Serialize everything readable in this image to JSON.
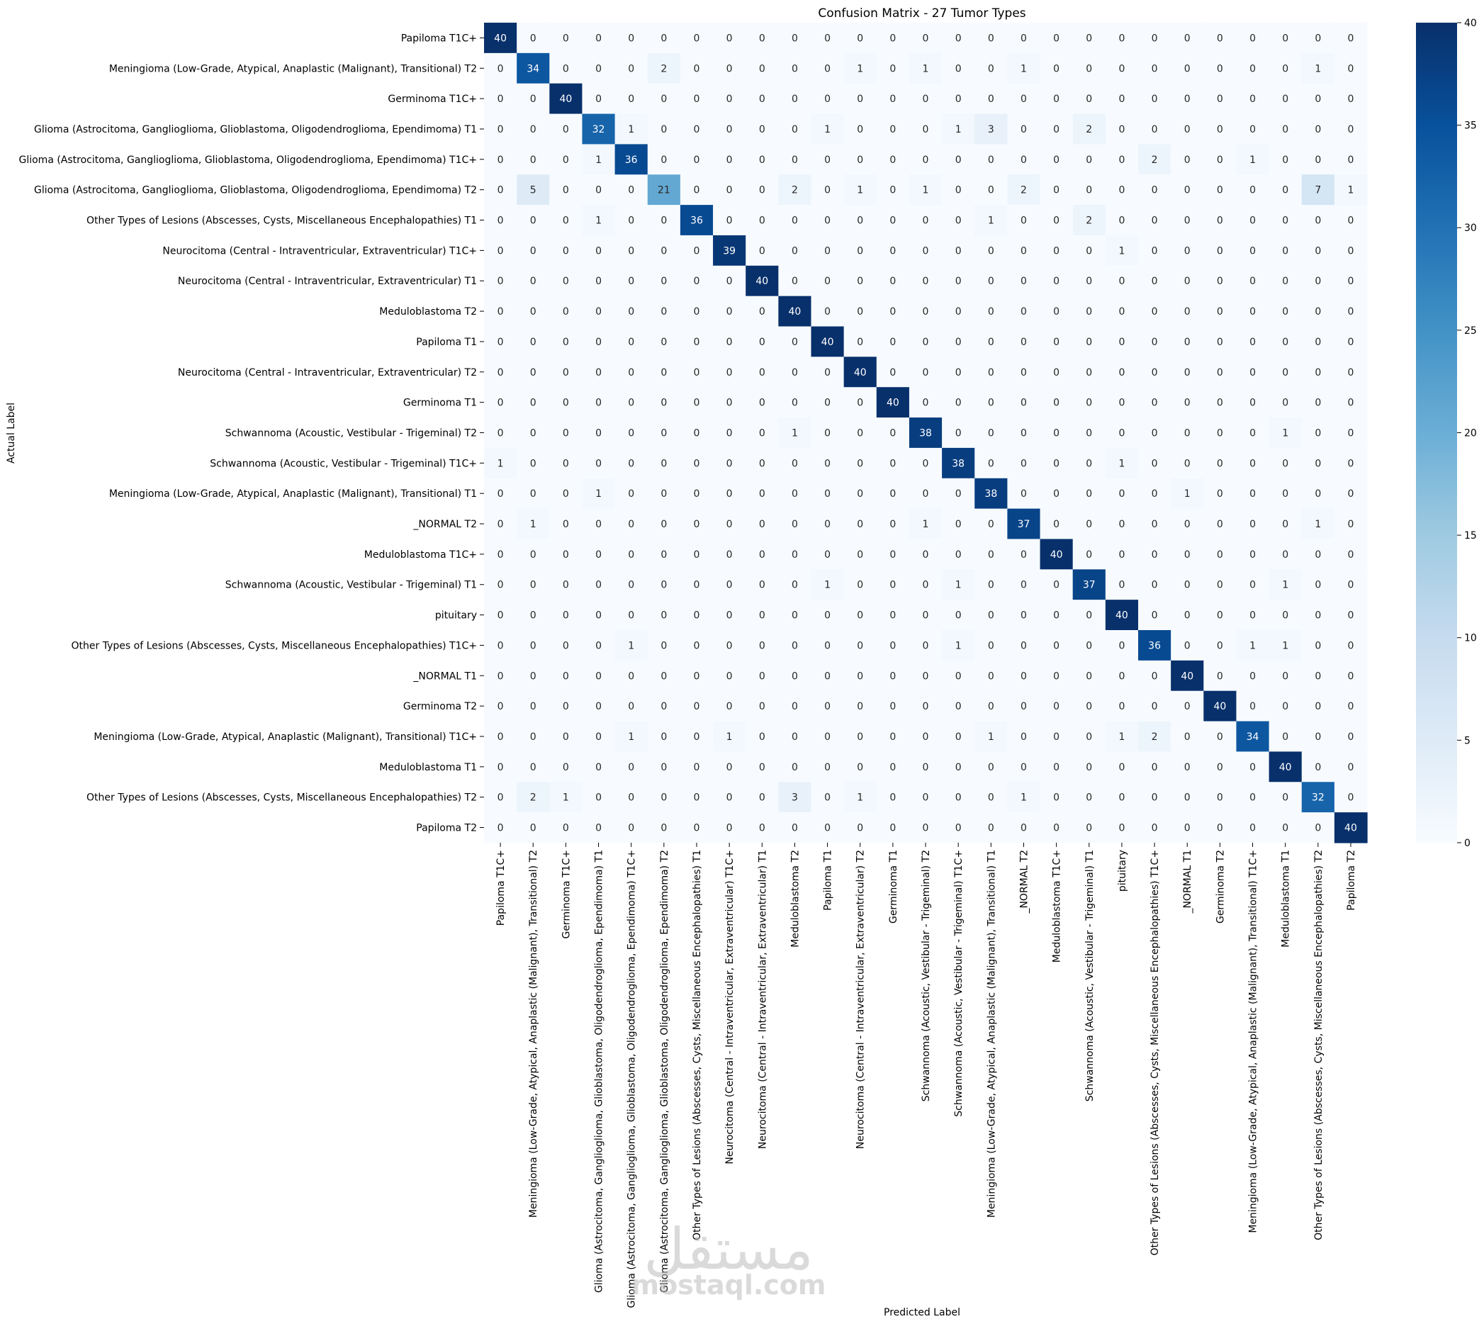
{
  "chart_data": {
    "type": "heatmap",
    "title": "Confusion Matrix - 27 Tumor Types",
    "xlabel": "Predicted Label",
    "ylabel": "Actual Label",
    "labels": [
      "Papiloma T1C+",
      "Meningioma (Low-Grade, Atypical, Anaplastic (Malignant), Transitional)  T2",
      "Germinoma T1C+",
      "Glioma (Astrocitoma, Ganglioglioma, Glioblastoma, Oligodendroglioma, Ependimoma) T1",
      "Glioma (Astrocitoma, Ganglioglioma, Glioblastoma, Oligodendroglioma, Ependimoma) T1C+",
      "Glioma (Astrocitoma, Ganglioglioma, Glioblastoma, Oligodendroglioma, Ependimoma) T2",
      "Other Types of Lesions (Abscesses, Cysts, Miscellaneous Encephalopathies) T1",
      "Neurocitoma (Central - Intraventricular, Extraventricular) T1C+",
      "Neurocitoma (Central - Intraventricular, Extraventricular) T1",
      "Meduloblastoma T2",
      "Papiloma T1",
      "Neurocitoma (Central - Intraventricular, Extraventricular) T2",
      "Germinoma T1",
      "Schwannoma (Acoustic, Vestibular - Trigeminal) T2",
      "Schwannoma (Acoustic, Vestibular - Trigeminal) T1C+",
      "Meningioma (Low-Grade, Atypical, Anaplastic (Malignant), Transitional) T1",
      "_NORMAL T2",
      "Meduloblastoma T1C+",
      "Schwannoma (Acoustic, Vestibular - Trigeminal) T1",
      "pituitary",
      "Other Types of Lesions (Abscesses, Cysts, Miscellaneous Encephalopathies) T1C+",
      "_NORMAL T1",
      "Germinoma T2",
      "Meningioma (Low-Grade, Atypical, Anaplastic (Malignant), Transitional)  T1C+",
      "Meduloblastoma T1",
      "Other Types of Lesions (Abscesses, Cysts, Miscellaneous Encephalopathies) T2",
      "Papiloma T2"
    ],
    "matrix": [
      [
        40,
        0,
        0,
        0,
        0,
        0,
        0,
        0,
        0,
        0,
        0,
        0,
        0,
        0,
        0,
        0,
        0,
        0,
        0,
        0,
        0,
        0,
        0,
        0,
        0,
        0,
        0
      ],
      [
        0,
        34,
        0,
        0,
        0,
        2,
        0,
        0,
        0,
        0,
        0,
        1,
        0,
        1,
        0,
        0,
        1,
        0,
        0,
        0,
        0,
        0,
        0,
        0,
        0,
        1,
        0
      ],
      [
        0,
        0,
        40,
        0,
        0,
        0,
        0,
        0,
        0,
        0,
        0,
        0,
        0,
        0,
        0,
        0,
        0,
        0,
        0,
        0,
        0,
        0,
        0,
        0,
        0,
        0,
        0
      ],
      [
        0,
        0,
        0,
        32,
        1,
        0,
        0,
        0,
        0,
        0,
        1,
        0,
        0,
        0,
        1,
        3,
        0,
        0,
        2,
        0,
        0,
        0,
        0,
        0,
        0,
        0,
        0
      ],
      [
        0,
        0,
        0,
        1,
        36,
        0,
        0,
        0,
        0,
        0,
        0,
        0,
        0,
        0,
        0,
        0,
        0,
        0,
        0,
        0,
        2,
        0,
        0,
        1,
        0,
        0,
        0
      ],
      [
        0,
        5,
        0,
        0,
        0,
        21,
        0,
        0,
        0,
        2,
        0,
        1,
        0,
        1,
        0,
        0,
        2,
        0,
        0,
        0,
        0,
        0,
        0,
        0,
        0,
        7,
        1
      ],
      [
        0,
        0,
        0,
        1,
        0,
        0,
        36,
        0,
        0,
        0,
        0,
        0,
        0,
        0,
        0,
        1,
        0,
        0,
        2,
        0,
        0,
        0,
        0,
        0,
        0,
        0,
        0
      ],
      [
        0,
        0,
        0,
        0,
        0,
        0,
        0,
        39,
        0,
        0,
        0,
        0,
        0,
        0,
        0,
        0,
        0,
        0,
        0,
        1,
        0,
        0,
        0,
        0,
        0,
        0,
        0
      ],
      [
        0,
        0,
        0,
        0,
        0,
        0,
        0,
        0,
        40,
        0,
        0,
        0,
        0,
        0,
        0,
        0,
        0,
        0,
        0,
        0,
        0,
        0,
        0,
        0,
        0,
        0,
        0
      ],
      [
        0,
        0,
        0,
        0,
        0,
        0,
        0,
        0,
        0,
        40,
        0,
        0,
        0,
        0,
        0,
        0,
        0,
        0,
        0,
        0,
        0,
        0,
        0,
        0,
        0,
        0,
        0
      ],
      [
        0,
        0,
        0,
        0,
        0,
        0,
        0,
        0,
        0,
        0,
        40,
        0,
        0,
        0,
        0,
        0,
        0,
        0,
        0,
        0,
        0,
        0,
        0,
        0,
        0,
        0,
        0
      ],
      [
        0,
        0,
        0,
        0,
        0,
        0,
        0,
        0,
        0,
        0,
        0,
        40,
        0,
        0,
        0,
        0,
        0,
        0,
        0,
        0,
        0,
        0,
        0,
        0,
        0,
        0,
        0
      ],
      [
        0,
        0,
        0,
        0,
        0,
        0,
        0,
        0,
        0,
        0,
        0,
        0,
        40,
        0,
        0,
        0,
        0,
        0,
        0,
        0,
        0,
        0,
        0,
        0,
        0,
        0,
        0
      ],
      [
        0,
        0,
        0,
        0,
        0,
        0,
        0,
        0,
        0,
        1,
        0,
        0,
        0,
        38,
        0,
        0,
        0,
        0,
        0,
        0,
        0,
        0,
        0,
        0,
        1,
        0,
        0
      ],
      [
        1,
        0,
        0,
        0,
        0,
        0,
        0,
        0,
        0,
        0,
        0,
        0,
        0,
        0,
        38,
        0,
        0,
        0,
        0,
        1,
        0,
        0,
        0,
        0,
        0,
        0,
        0
      ],
      [
        0,
        0,
        0,
        1,
        0,
        0,
        0,
        0,
        0,
        0,
        0,
        0,
        0,
        0,
        0,
        38,
        0,
        0,
        0,
        0,
        0,
        1,
        0,
        0,
        0,
        0,
        0
      ],
      [
        0,
        1,
        0,
        0,
        0,
        0,
        0,
        0,
        0,
        0,
        0,
        0,
        0,
        1,
        0,
        0,
        37,
        0,
        0,
        0,
        0,
        0,
        0,
        0,
        0,
        1,
        0
      ],
      [
        0,
        0,
        0,
        0,
        0,
        0,
        0,
        0,
        0,
        0,
        0,
        0,
        0,
        0,
        0,
        0,
        0,
        40,
        0,
        0,
        0,
        0,
        0,
        0,
        0,
        0,
        0
      ],
      [
        0,
        0,
        0,
        0,
        0,
        0,
        0,
        0,
        0,
        0,
        1,
        0,
        0,
        0,
        1,
        0,
        0,
        0,
        37,
        0,
        0,
        0,
        0,
        0,
        1,
        0,
        0
      ],
      [
        0,
        0,
        0,
        0,
        0,
        0,
        0,
        0,
        0,
        0,
        0,
        0,
        0,
        0,
        0,
        0,
        0,
        0,
        0,
        40,
        0,
        0,
        0,
        0,
        0,
        0,
        0
      ],
      [
        0,
        0,
        0,
        0,
        1,
        0,
        0,
        0,
        0,
        0,
        0,
        0,
        0,
        0,
        1,
        0,
        0,
        0,
        0,
        0,
        36,
        0,
        0,
        1,
        1,
        0,
        0
      ],
      [
        0,
        0,
        0,
        0,
        0,
        0,
        0,
        0,
        0,
        0,
        0,
        0,
        0,
        0,
        0,
        0,
        0,
        0,
        0,
        0,
        0,
        40,
        0,
        0,
        0,
        0,
        0
      ],
      [
        0,
        0,
        0,
        0,
        0,
        0,
        0,
        0,
        0,
        0,
        0,
        0,
        0,
        0,
        0,
        0,
        0,
        0,
        0,
        0,
        0,
        0,
        40,
        0,
        0,
        0,
        0
      ],
      [
        0,
        0,
        0,
        0,
        1,
        0,
        0,
        1,
        0,
        0,
        0,
        0,
        0,
        0,
        0,
        1,
        0,
        0,
        0,
        1,
        2,
        0,
        0,
        34,
        0,
        0,
        0
      ],
      [
        0,
        0,
        0,
        0,
        0,
        0,
        0,
        0,
        0,
        0,
        0,
        0,
        0,
        0,
        0,
        0,
        0,
        0,
        0,
        0,
        0,
        0,
        0,
        0,
        40,
        0,
        0
      ],
      [
        0,
        2,
        1,
        0,
        0,
        0,
        0,
        0,
        0,
        3,
        0,
        1,
        0,
        0,
        0,
        0,
        1,
        0,
        0,
        0,
        0,
        0,
        0,
        0,
        0,
        32,
        0
      ],
      [
        0,
        0,
        0,
        0,
        0,
        0,
        0,
        0,
        0,
        0,
        0,
        0,
        0,
        0,
        0,
        0,
        0,
        0,
        0,
        0,
        0,
        0,
        0,
        0,
        0,
        0,
        40
      ]
    ],
    "value_range": [
      0,
      40
    ],
    "colorbar_ticks": [
      0,
      5,
      10,
      15,
      20,
      25,
      30,
      35,
      40
    ],
    "colormap": [
      "#f7fbff",
      "#deebf7",
      "#c6dbef",
      "#9ecae1",
      "#6baed6",
      "#4292c6",
      "#2171b5",
      "#08519c",
      "#08306b"
    ],
    "grid": false,
    "legend": "colorbar-right"
  },
  "watermark": {
    "arabic": "مستقل",
    "latin": "mostaql.com"
  }
}
